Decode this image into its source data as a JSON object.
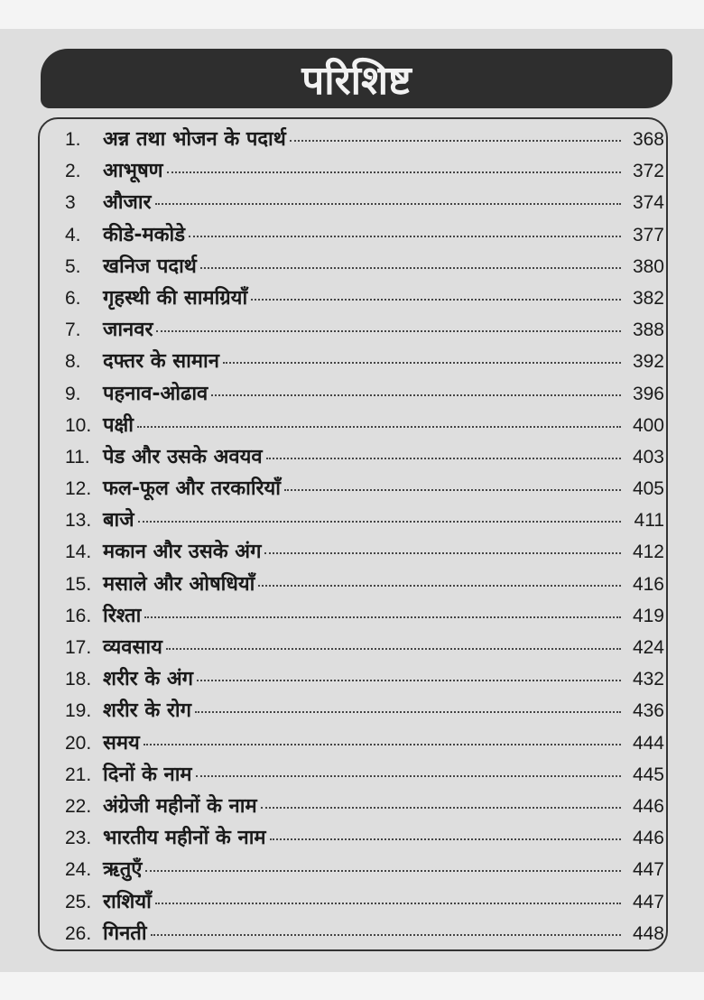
{
  "heading": "परिशिष्ट",
  "entries": [
    {
      "num": "1.",
      "title": "अन्न तथा भोजन के पदार्थ",
      "page": "368"
    },
    {
      "num": "2.",
      "title": "आभूषण",
      "page": "372"
    },
    {
      "num": "3",
      "title": "औजार",
      "page": "374"
    },
    {
      "num": "4.",
      "title": "कीडे-मकोडे",
      "page": "377"
    },
    {
      "num": "5.",
      "title": "खनिज पदार्थ",
      "page": "380"
    },
    {
      "num": "6.",
      "title": "गृहस्थी की सामग्रियाँ",
      "page": "382"
    },
    {
      "num": "7.",
      "title": "जानवर",
      "page": "388"
    },
    {
      "num": "8.",
      "title": "दफ्तर के सामान",
      "page": "392"
    },
    {
      "num": "9.",
      "title": "पहनाव-ओढाव",
      "page": "396"
    },
    {
      "num": "10.",
      "title": "पक्षी",
      "page": "400"
    },
    {
      "num": "11.",
      "title": "पेड और उसके अवयव",
      "page": "403"
    },
    {
      "num": "12.",
      "title": "फल-फूल और तरकारियाँ",
      "page": "405"
    },
    {
      "num": "13.",
      "title": "बाजे",
      "page": "411"
    },
    {
      "num": "14.",
      "title": "मकान और उसके अंग",
      "page": "412"
    },
    {
      "num": "15.",
      "title": "मसाले और ओषधियाँ",
      "page": "416"
    },
    {
      "num": "16.",
      "title": "रिश्ता",
      "page": "419"
    },
    {
      "num": "17.",
      "title": "व्यवसाय",
      "page": "424"
    },
    {
      "num": "18.",
      "title": "शरीर के अंग",
      "page": "432"
    },
    {
      "num": "19.",
      "title": "शरीर के रोग",
      "page": "436"
    },
    {
      "num": "20.",
      "title": "समय",
      "page": "444"
    },
    {
      "num": "21.",
      "title": "दिनों के नाम",
      "page": "445"
    },
    {
      "num": "22.",
      "title": "अंग्रेजी महीनों के नाम",
      "page": "446"
    },
    {
      "num": "23.",
      "title": "भारतीय महीनों के नाम",
      "page": "446"
    },
    {
      "num": "24.",
      "title": "ऋतुएँ",
      "page": "447"
    },
    {
      "num": "25.",
      "title": "राशियाँ",
      "page": "447"
    },
    {
      "num": "26.",
      "title": "गिनती",
      "page": "448"
    }
  ]
}
